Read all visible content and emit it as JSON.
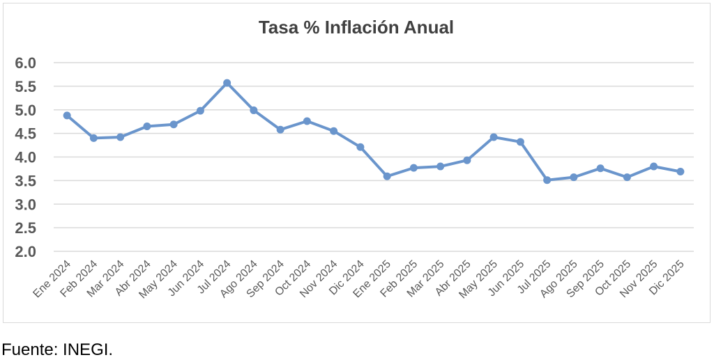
{
  "chart_data": {
    "type": "line",
    "title": "Tasa % Inflación Anual",
    "xlabel": "",
    "ylabel": "",
    "categories": [
      "Ene 2024",
      "Feb 2024",
      "Mar 2024",
      "Abr 2024",
      "May 2024",
      "Jun 2024",
      "Jul 2024",
      "Ago 2024",
      "Sep 2024",
      "Oct 2024",
      "Nov 2024",
      "Dic 2024",
      "Ene 2025",
      "Feb 2025",
      "Mar 2025",
      "Abr 2025",
      "May 2025",
      "Jun 2025",
      "Jul 2025",
      "Ago 2025",
      "Sep 2025",
      "Oct 2025",
      "Nov 2025",
      "Dic 2025"
    ],
    "series": [
      {
        "values": [
          4.88,
          4.4,
          4.42,
          4.65,
          4.69,
          4.98,
          5.57,
          4.99,
          4.58,
          4.76,
          4.55,
          4.21,
          3.59,
          3.77,
          3.8,
          3.93,
          4.42,
          4.32,
          3.51,
          3.57,
          3.76,
          3.57,
          3.8,
          3.69
        ]
      }
    ],
    "ylim": [
      2.0,
      6.0
    ],
    "yticks": [
      "2.0",
      "2.5",
      "3.0",
      "3.5",
      "4.0",
      "4.5",
      "5.0",
      "5.5",
      "6.0"
    ],
    "grid": true,
    "legend": "none",
    "colors": {
      "line": "#6a95cc",
      "grid": "#d9d9d9",
      "tick_text": "#595959",
      "title_text": "#404040"
    }
  },
  "source_note": "Fuente: INEGI."
}
